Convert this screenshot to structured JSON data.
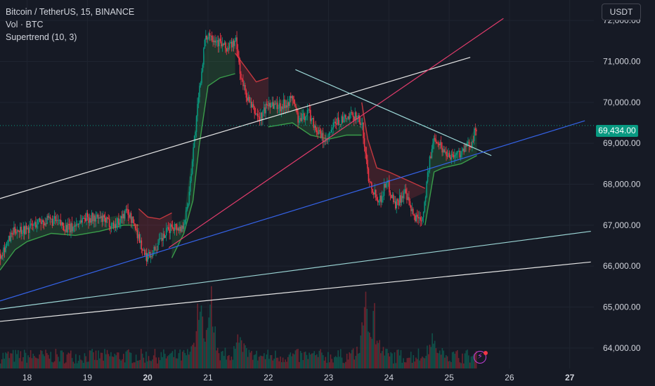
{
  "legend": {
    "symbol": "Bitcoin / TetherUS, 15, BINANCE",
    "volume": "Vol · BTC",
    "indicator": "Supertrend (10, 3)"
  },
  "currency_button": "USDT",
  "last_price": 69434,
  "last_price_label": "69,434.00",
  "colors": {
    "background": "#161a25",
    "grid": "#1f2430",
    "up": "#089981",
    "down": "#f23645",
    "supertrend_up": "#3a9d4a",
    "supertrend_down": "#c2383f",
    "text": "#d1d4dc",
    "trendline_white": "#e6e6e6",
    "trendline_pink": "#e23c6c",
    "trendline_blue": "#3563e9",
    "trendline_cyan": "#9cd6d6",
    "alert_icon": "#c13fd9"
  },
  "icons": [
    "lightning-alert-icon"
  ],
  "chart_data": {
    "type": "candlestick",
    "symbol": "Bitcoin / TetherUS",
    "interval": "15",
    "exchange": "BINANCE",
    "y_axis": {
      "ticks": [
        64000,
        65000,
        66000,
        67000,
        68000,
        69000,
        70000,
        71000,
        72000
      ],
      "tick_labels": [
        "64,000.00",
        "65,000.00",
        "66,000.00",
        "67,000.00",
        "68,000.00",
        "69,000.00",
        "70,000.00",
        "71,000.00",
        "72,000.00"
      ],
      "range": [
        63500,
        72500
      ]
    },
    "x_axis": {
      "ticks": [
        18,
        19,
        20,
        21,
        22,
        23,
        24,
        25,
        26,
        27
      ],
      "tick_labels": [
        "18",
        "19",
        "20",
        "21",
        "22",
        "23",
        "24",
        "25",
        "26",
        "27"
      ],
      "bold_ticks": [
        20,
        27
      ],
      "range": [
        17.55,
        27.4
      ]
    },
    "grid": true,
    "price_path": [
      [
        17.55,
        66300
      ],
      [
        17.8,
        66900
      ],
      [
        18.0,
        66900
      ],
      [
        18.2,
        67100
      ],
      [
        18.45,
        67100
      ],
      [
        18.7,
        66900
      ],
      [
        18.95,
        67200
      ],
      [
        19.2,
        67150
      ],
      [
        19.45,
        67000
      ],
      [
        19.65,
        67350
      ],
      [
        19.8,
        66900
      ],
      [
        19.95,
        66200
      ],
      [
        20.1,
        66400
      ],
      [
        20.25,
        66700
      ],
      [
        20.4,
        67000
      ],
      [
        20.55,
        66900
      ],
      [
        20.65,
        67400
      ],
      [
        20.75,
        68900
      ],
      [
        20.85,
        70300
      ],
      [
        20.93,
        71400
      ],
      [
        21.0,
        71700
      ],
      [
        21.15,
        71500
      ],
      [
        21.3,
        71300
      ],
      [
        21.45,
        71500
      ],
      [
        21.55,
        70500
      ],
      [
        21.7,
        69900
      ],
      [
        21.85,
        69600
      ],
      [
        22.0,
        70000
      ],
      [
        22.2,
        69900
      ],
      [
        22.4,
        70100
      ],
      [
        22.5,
        69500
      ],
      [
        22.65,
        69800
      ],
      [
        22.8,
        69300
      ],
      [
        22.95,
        69000
      ],
      [
        23.1,
        69500
      ],
      [
        23.3,
        69600
      ],
      [
        23.45,
        69700
      ],
      [
        23.55,
        69400
      ],
      [
        23.65,
        68200
      ],
      [
        23.75,
        67800
      ],
      [
        23.85,
        67600
      ],
      [
        23.95,
        68100
      ],
      [
        24.1,
        67500
      ],
      [
        24.25,
        67800
      ],
      [
        24.4,
        67200
      ],
      [
        24.55,
        67200
      ],
      [
        24.65,
        68400
      ],
      [
        24.75,
        69200
      ],
      [
        24.9,
        68800
      ],
      [
        25.05,
        68700
      ],
      [
        25.2,
        68800
      ],
      [
        25.35,
        69000
      ],
      [
        25.46,
        69434
      ]
    ],
    "supertrend": [
      {
        "trend": "up",
        "points": [
          [
            17.55,
            65900
          ],
          [
            17.8,
            66400
          ],
          [
            18.0,
            66600
          ],
          [
            18.4,
            66800
          ],
          [
            18.8,
            66750
          ],
          [
            19.2,
            66850
          ],
          [
            19.6,
            67000
          ],
          [
            19.85,
            67000
          ]
        ]
      },
      {
        "trend": "down",
        "points": [
          [
            19.85,
            67400
          ],
          [
            20.0,
            67200
          ],
          [
            20.2,
            67150
          ],
          [
            20.4,
            67300
          ]
        ]
      },
      {
        "trend": "up",
        "points": [
          [
            20.4,
            66200
          ],
          [
            20.6,
            66800
          ],
          [
            20.75,
            67600
          ],
          [
            20.85,
            68900
          ],
          [
            21.0,
            70400
          ],
          [
            21.2,
            70600
          ],
          [
            21.45,
            70700
          ]
        ]
      },
      {
        "trend": "down",
        "points": [
          [
            21.45,
            71200
          ],
          [
            21.6,
            70900
          ],
          [
            21.8,
            70500
          ],
          [
            22.0,
            70600
          ]
        ]
      },
      {
        "trend": "up",
        "points": [
          [
            22.0,
            69400
          ],
          [
            22.4,
            69500
          ],
          [
            22.7,
            69200
          ],
          [
            23.0,
            69100
          ],
          [
            23.3,
            69200
          ],
          [
            23.55,
            69200
          ]
        ]
      },
      {
        "trend": "down",
        "points": [
          [
            23.55,
            70000
          ],
          [
            23.65,
            69100
          ],
          [
            23.8,
            68400
          ],
          [
            24.0,
            68300
          ],
          [
            24.3,
            68100
          ],
          [
            24.6,
            67900
          ]
        ]
      },
      {
        "trend": "up",
        "points": [
          [
            24.6,
            67000
          ],
          [
            24.75,
            68300
          ],
          [
            24.9,
            68400
          ],
          [
            25.2,
            68500
          ],
          [
            25.46,
            68700
          ]
        ]
      }
    ],
    "volume": {
      "spikes": [
        {
          "x": 20.85,
          "v": 1.0
        },
        {
          "x": 21.05,
          "v": 0.75
        },
        {
          "x": 23.6,
          "v": 0.9
        },
        {
          "x": 23.75,
          "v": 0.6
        },
        {
          "x": 21.5,
          "v": 0.45
        },
        {
          "x": 24.7,
          "v": 0.4
        }
      ]
    },
    "trendlines": [
      {
        "color": "white",
        "from": [
          17.55,
          67650
        ],
        "to": [
          25.35,
          71100
        ]
      },
      {
        "color": "pink",
        "from": [
          20.35,
          66450
        ],
        "to": [
          25.9,
          72050
        ]
      },
      {
        "color": "cyan",
        "from": [
          22.45,
          70800
        ],
        "to": [
          25.7,
          68700
        ]
      },
      {
        "color": "blue",
        "from": [
          17.55,
          65150
        ],
        "to": [
          27.25,
          69550
        ]
      },
      {
        "color": "cyan",
        "from": [
          17.55,
          64950
        ],
        "to": [
          27.35,
          66850
        ]
      },
      {
        "color": "white",
        "from": [
          17.55,
          64650
        ],
        "to": [
          27.35,
          66100
        ]
      }
    ]
  }
}
